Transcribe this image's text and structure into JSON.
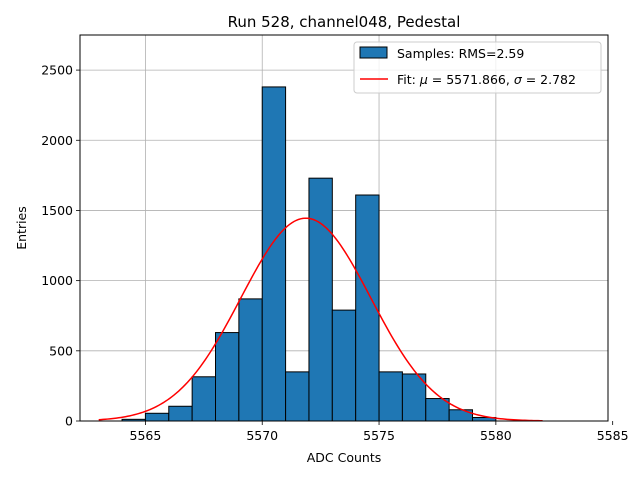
{
  "chart_data": {
    "type": "bar",
    "title": "Run 528, channel048, Pedestal",
    "xlabel": "ADC Counts",
    "ylabel": "Entries",
    "xlim": [
      5562.2,
      5584.8
    ],
    "ylim": [
      0,
      2750
    ],
    "grid": true,
    "legend_position": "top-right",
    "x_ticks": [
      5565,
      5570,
      5575,
      5580,
      5585
    ],
    "x_tick_labels": [
      "5565",
      "5570",
      "5575",
      "5580",
      "5585"
    ],
    "y_ticks": [
      0,
      500,
      1000,
      1500,
      2000,
      2500
    ],
    "y_tick_labels": [
      "0",
      "500",
      "1000",
      "1500",
      "2000",
      "2500"
    ],
    "histogram": {
      "name": "Samples: RMS=2.59",
      "color": "#1f77b4",
      "edgecolor": "#000000",
      "bin_edges": [
        5564.0,
        5565.0,
        5566.0,
        5567.0,
        5568.0,
        5569.0,
        5570.0,
        5571.0,
        5572.0,
        5573.0,
        5574.0,
        5575.0,
        5576.0,
        5577.0,
        5578.0,
        5579.0,
        5580.0
      ],
      "counts": [
        12,
        55,
        105,
        315,
        630,
        870,
        2380,
        350,
        1730,
        790,
        1610,
        350,
        335,
        160,
        80,
        25
      ]
    },
    "fit": {
      "name": "Fit: μ = 5571.866, σ = 2.782",
      "label_prefix": "Fit: ",
      "mu_symbol": "μ",
      "mu_text": " = 5571.866, ",
      "sigma_symbol": "σ",
      "sigma_text": " = 2.782",
      "color": "#ff0000",
      "mu": 5571.866,
      "sigma": 2.782,
      "amplitude": 1445,
      "x_range": [
        5563.0,
        5582.0
      ]
    }
  }
}
